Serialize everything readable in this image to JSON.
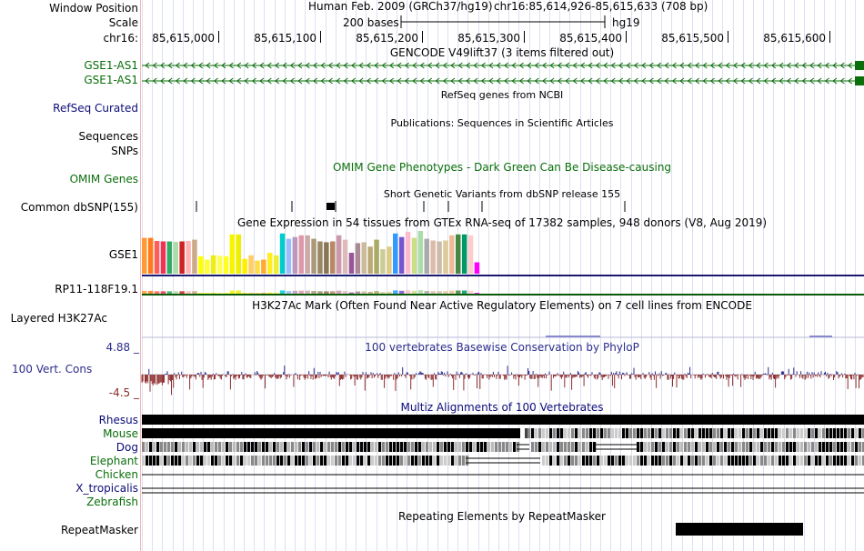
{
  "header": {
    "window_position_label": "Window Position",
    "scale_label": "Scale",
    "chrom_label": "chr16:",
    "assembly": "Human Feb. 2009 (GRCh37/hg19)",
    "position": "chr16:85,614,926-85,615,633 (708 bp)",
    "scale_text": "200 bases",
    "scale_db": "hg19",
    "ruler_ticks": [
      "85,615,000",
      "85,615,100",
      "85,615,200",
      "85,615,300",
      "85,615,400",
      "85,615,500",
      "85,615,600"
    ]
  },
  "tracks": {
    "gencode_title": "GENCODE V49lift37 (3 items filtered out)",
    "gencode_items": [
      "GSE1-AS1",
      "GSE1-AS1"
    ],
    "refseq_title": "RefSeq genes from NCBI",
    "refseq_label": "RefSeq Curated",
    "pubs_title": "Publications: Sequences in Scientific Articles",
    "pubs_labels": [
      "Sequences",
      "SNPs"
    ],
    "omim_label": "OMIM Genes",
    "omim_title": "OMIM Gene Phenotypes - Dark Green Can Be Disease-causing",
    "snp_title": "Short Genetic Variants from dbSNP release 155",
    "snp_label": "Common dbSNP(155)",
    "gtex_title": "Gene Expression in 54 tissues from GTEx RNA-seq of 17382 samples, 948 donors (V8, Aug 2019)",
    "gtex_labels": [
      "GSE1",
      "RP11-118F19.1"
    ],
    "h3k27ac_title": "H3K27Ac Mark (Often Found Near Active Regulatory Elements) on 7 cell lines from ENCODE",
    "h3k27ac_label": "Layered H3K27Ac",
    "cons_title": "100 vertebrates Basewise Conservation by PhyloP",
    "cons_label": "100 Vert. Cons",
    "cons_max": "4.88 _",
    "cons_min": "-4.5 _",
    "multiz_title": "Multiz Alignments of 100 Vertebrates",
    "species": [
      "Rhesus",
      "Mouse",
      "Dog",
      "Elephant",
      "Chicken",
      "X_tropicalis",
      "Zebrafish"
    ],
    "rmsk_title": "Repeating Elements by RepeatMasker",
    "rmsk_label": "RepeatMasker"
  },
  "colors": {
    "gencode": "#0a6e0a",
    "refseq": "#0c0c78",
    "omim": "#0a6e0a",
    "phylop_pos": "#2c2c8c",
    "phylop_neg": "#8c2c2c",
    "gtex_baseline": "#1a1a6e",
    "gtex_baseline2": "#0a5a0a",
    "species_label": "#0c0c78",
    "species_label_alt": "#0a6e0a",
    "gridline": "#dde0f0",
    "sidebar_divider": "#f2b6b6"
  },
  "gtex_bar_colors": [
    "#ff9933",
    "#ff7a1a",
    "#ff5c5c",
    "#ee3355",
    "#33aa66",
    "#aaddaa",
    "#cc2222",
    "#ffb3b3",
    "#ccaa88",
    "#ffff00",
    "#ffff33",
    "#eeee11",
    "#ffff55",
    "#ffff22",
    "#f5f500",
    "#eeee00",
    "#ffee00",
    "#ffcc66",
    "#ffdd44",
    "#ffaa33",
    "#ffee22",
    "#eeee33",
    "#00cccc",
    "#99bbff",
    "#bb99bb",
    "#dd99aa",
    "#ccaaaa",
    "#aa9977",
    "#998866",
    "#887755",
    "#bb8866",
    "#cc99aa",
    "#ddbbbb",
    "#995599",
    "#aa8899",
    "#ccbb99",
    "#bbaa77",
    "#aaaa66",
    "#cccc99",
    "#ddcc88",
    "#3399ff",
    "#7755cc",
    "#ffbbcc",
    "#ccdd88",
    "#aaddaa",
    "#aaaaaa",
    "#ddbbaa",
    "#ccbbaa",
    "#ddcc99",
    "#eebb99",
    "#448844",
    "#009966",
    "#ffcccc",
    "#ff00ff"
  ],
  "gtex_bar_heights": [
    0.82,
    0.82,
    0.75,
    0.74,
    0.74,
    0.73,
    0.74,
    0.75,
    0.78,
    0.4,
    0.32,
    0.42,
    0.41,
    0.4,
    0.9,
    0.9,
    0.34,
    0.42,
    0.3,
    0.32,
    0.48,
    0.42,
    0.92,
    0.8,
    0.84,
    0.88,
    0.88,
    0.8,
    0.74,
    0.72,
    0.74,
    0.88,
    0.78,
    0.48,
    0.7,
    0.72,
    0.62,
    0.78,
    0.56,
    0.62,
    0.92,
    0.84,
    0.96,
    0.82,
    0.98,
    0.8,
    0.76,
    0.74,
    0.76,
    0.88,
    0.9,
    0.9,
    0.88,
    0.26
  ]
}
